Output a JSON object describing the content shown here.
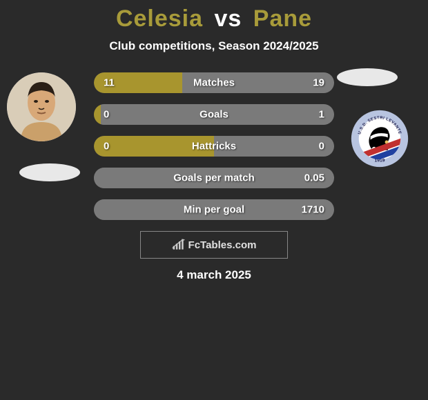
{
  "title": {
    "player1": "Celesia",
    "vs": "vs",
    "player2": "Pane",
    "color_player1": "#a89b3a",
    "color_player2": "#a89b3a",
    "color_vs": "#ffffff"
  },
  "subtitle": "Club competitions, Season 2024/2025",
  "date": "4 march 2025",
  "watermark": "FcTables.com",
  "colors": {
    "bar_left": "#a8952e",
    "bar_right": "#7a7a7a",
    "bar_track": "#555555",
    "background": "#2a2a2a",
    "text": "#ffffff"
  },
  "club_badge": {
    "outer": "#b8c4e0",
    "inner": "#ffffff",
    "top_text": "U.S.D. SESTRI LEVANTE",
    "year": "1919",
    "head_fill": "#000000",
    "bandana_fill": "#ffffff",
    "stripe1": "#c03030",
    "stripe2": "#2040a0"
  },
  "stats": [
    {
      "label": "Matches",
      "left_val": "11",
      "right_val": "19",
      "left_pct": 36.7,
      "right_pct": 63.3
    },
    {
      "label": "Goals",
      "left_val": "0",
      "right_val": "1",
      "left_pct": 3.0,
      "right_pct": 97.0
    },
    {
      "label": "Hattricks",
      "left_val": "0",
      "right_val": "0",
      "left_pct": 50.0,
      "right_pct": 50.0
    },
    {
      "label": "Goals per match",
      "left_val": "",
      "right_val": "0.05",
      "left_pct": 0.0,
      "right_pct": 100.0
    },
    {
      "label": "Min per goal",
      "left_val": "",
      "right_val": "1710",
      "left_pct": 0.0,
      "right_pct": 100.0
    }
  ]
}
